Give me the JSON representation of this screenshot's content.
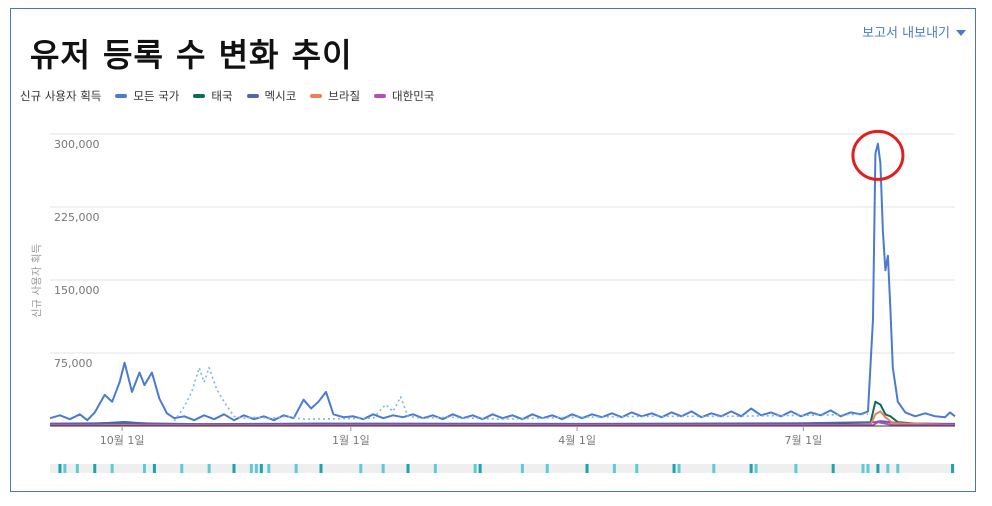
{
  "title": "유저 등록 수 변화 추이",
  "export_label": "보고서 내보내기",
  "legend": {
    "metric_label": "신규 사용자 획득",
    "items": [
      {
        "label": "모든 국가",
        "color": "#4a7bd0"
      },
      {
        "label": "태국",
        "color": "#0d6b55"
      },
      {
        "label": "멕시코",
        "color": "#5a62b0"
      },
      {
        "label": "브라질",
        "color": "#ef7d5a"
      },
      {
        "label": "대한민국",
        "color": "#b04fb7"
      }
    ]
  },
  "chart_data": {
    "type": "line",
    "ylabel": "신규 사용자 획득",
    "ylim": [
      0,
      300000
    ],
    "yticks": [
      {
        "value": 75000,
        "label": "75,000"
      },
      {
        "value": 150000,
        "label": "150,000"
      },
      {
        "value": 225000,
        "label": "225,000"
      },
      {
        "value": 300000,
        "label": "300,000"
      }
    ],
    "xlim": [
      "2023-09-02",
      "2024-08-31"
    ],
    "xticks": [
      {
        "date": "2023-10-01",
        "label": "10월 1일"
      },
      {
        "date": "2024-01-01",
        "label": "1월 1일"
      },
      {
        "date": "2024-04-01",
        "label": "4월 1일"
      },
      {
        "date": "2024-07-01",
        "label": "7월 1일"
      }
    ],
    "series": [
      {
        "name": "모든 국가",
        "color": "#4a7bd0",
        "points": [
          [
            "2023-09-02",
            8000
          ],
          [
            "2023-09-06",
            11000
          ],
          [
            "2023-09-10",
            7000
          ],
          [
            "2023-09-14",
            12000
          ],
          [
            "2023-09-17",
            6000
          ],
          [
            "2023-09-20",
            14000
          ],
          [
            "2023-09-24",
            32000
          ],
          [
            "2023-09-27",
            25000
          ],
          [
            "2023-09-30",
            45000
          ],
          [
            "2023-10-02",
            65000
          ],
          [
            "2023-10-05",
            35000
          ],
          [
            "2023-10-08",
            55000
          ],
          [
            "2023-10-10",
            42000
          ],
          [
            "2023-10-13",
            55000
          ],
          [
            "2023-10-16",
            28000
          ],
          [
            "2023-10-19",
            13000
          ],
          [
            "2023-10-22",
            8000
          ],
          [
            "2023-10-26",
            10000
          ],
          [
            "2023-10-30",
            6000
          ],
          [
            "2023-11-03",
            11000
          ],
          [
            "2023-11-07",
            7000
          ],
          [
            "2023-11-11",
            12000
          ],
          [
            "2023-11-15",
            6000
          ],
          [
            "2023-11-19",
            11000
          ],
          [
            "2023-11-23",
            7000
          ],
          [
            "2023-11-27",
            10000
          ],
          [
            "2023-12-01",
            6000
          ],
          [
            "2023-12-05",
            11000
          ],
          [
            "2023-12-09",
            8000
          ],
          [
            "2023-12-13",
            27000
          ],
          [
            "2023-12-16",
            18000
          ],
          [
            "2023-12-19",
            25000
          ],
          [
            "2023-12-22",
            35000
          ],
          [
            "2023-12-25",
            12000
          ],
          [
            "2023-12-29",
            9000
          ],
          [
            "2024-01-02",
            10000
          ],
          [
            "2024-01-06",
            7000
          ],
          [
            "2024-01-10",
            12000
          ],
          [
            "2024-01-14",
            8000
          ],
          [
            "2024-01-18",
            11000
          ],
          [
            "2024-01-22",
            9000
          ],
          [
            "2024-01-26",
            12000
          ],
          [
            "2024-01-30",
            8000
          ],
          [
            "2024-02-03",
            11000
          ],
          [
            "2024-02-07",
            7000
          ],
          [
            "2024-02-11",
            12000
          ],
          [
            "2024-02-15",
            8000
          ],
          [
            "2024-02-19",
            11000
          ],
          [
            "2024-02-23",
            7000
          ],
          [
            "2024-02-27",
            12000
          ],
          [
            "2024-03-02",
            8000
          ],
          [
            "2024-03-06",
            11000
          ],
          [
            "2024-03-10",
            7000
          ],
          [
            "2024-03-14",
            12000
          ],
          [
            "2024-03-18",
            8000
          ],
          [
            "2024-03-22",
            11000
          ],
          [
            "2024-03-26",
            7000
          ],
          [
            "2024-03-30",
            12000
          ],
          [
            "2024-04-03",
            8000
          ],
          [
            "2024-04-07",
            12000
          ],
          [
            "2024-04-11",
            9000
          ],
          [
            "2024-04-15",
            13000
          ],
          [
            "2024-04-19",
            9000
          ],
          [
            "2024-04-23",
            14000
          ],
          [
            "2024-04-27",
            10000
          ],
          [
            "2024-05-01",
            13000
          ],
          [
            "2024-05-05",
            9000
          ],
          [
            "2024-05-09",
            14000
          ],
          [
            "2024-05-13",
            10000
          ],
          [
            "2024-05-17",
            15000
          ],
          [
            "2024-05-21",
            9000
          ],
          [
            "2024-05-25",
            13000
          ],
          [
            "2024-05-29",
            10000
          ],
          [
            "2024-06-02",
            15000
          ],
          [
            "2024-06-06",
            10000
          ],
          [
            "2024-06-10",
            18000
          ],
          [
            "2024-06-14",
            11000
          ],
          [
            "2024-06-18",
            14000
          ],
          [
            "2024-06-22",
            10000
          ],
          [
            "2024-06-26",
            15000
          ],
          [
            "2024-06-30",
            10000
          ],
          [
            "2024-07-04",
            14000
          ],
          [
            "2024-07-08",
            11000
          ],
          [
            "2024-07-12",
            16000
          ],
          [
            "2024-07-16",
            10000
          ],
          [
            "2024-07-20",
            14000
          ],
          [
            "2024-07-24",
            12000
          ],
          [
            "2024-07-27",
            15000
          ],
          [
            "2024-07-29",
            110000
          ],
          [
            "2024-07-30",
            280000
          ],
          [
            "2024-07-31",
            290000
          ],
          [
            "2024-08-01",
            270000
          ],
          [
            "2024-08-02",
            200000
          ],
          [
            "2024-08-03",
            160000
          ],
          [
            "2024-08-04",
            175000
          ],
          [
            "2024-08-05",
            120000
          ],
          [
            "2024-08-06",
            60000
          ],
          [
            "2024-08-08",
            25000
          ],
          [
            "2024-08-11",
            14000
          ],
          [
            "2024-08-15",
            10000
          ],
          [
            "2024-08-19",
            13000
          ],
          [
            "2024-08-23",
            10000
          ],
          [
            "2024-08-27",
            9000
          ],
          [
            "2024-08-29",
            14000
          ],
          [
            "2024-08-31",
            10000
          ]
        ]
      },
      {
        "name": "모든 국가",
        "color": "#7fb5e0",
        "dashed": true,
        "points": [
          [
            "2023-10-22",
            5000
          ],
          [
            "2023-10-26",
            20000
          ],
          [
            "2023-10-29",
            35000
          ],
          [
            "2023-11-01",
            60000
          ],
          [
            "2023-11-03",
            45000
          ],
          [
            "2023-11-05",
            60000
          ],
          [
            "2023-11-08",
            38000
          ],
          [
            "2023-11-11",
            25000
          ],
          [
            "2023-11-15",
            10000
          ],
          [
            "2023-11-19",
            8000
          ],
          [
            "2023-11-24",
            9000
          ],
          [
            "2023-11-30",
            8000
          ],
          [
            "2023-12-06",
            10000
          ],
          [
            "2023-12-13",
            7000
          ],
          [
            "2024-01-10",
            8000
          ],
          [
            "2024-01-15",
            22000
          ],
          [
            "2024-01-18",
            15000
          ],
          [
            "2024-01-21",
            30000
          ],
          [
            "2024-01-24",
            10000
          ],
          [
            "2024-01-30",
            8000
          ],
          [
            "2024-02-10",
            9000
          ],
          [
            "2024-03-01",
            7000
          ],
          [
            "2024-04-01",
            9000
          ],
          [
            "2024-05-01",
            10000
          ],
          [
            "2024-06-01",
            10000
          ],
          [
            "2024-07-01",
            11000
          ],
          [
            "2024-07-27",
            12000
          ]
        ]
      },
      {
        "name": "태국",
        "color": "#0d6b55",
        "points": [
          [
            "2023-09-02",
            1500
          ],
          [
            "2023-09-20",
            2500
          ],
          [
            "2023-10-02",
            4000
          ],
          [
            "2023-10-08",
            3000
          ],
          [
            "2023-10-16",
            2000
          ],
          [
            "2023-11-15",
            1500
          ],
          [
            "2023-12-20",
            2500
          ],
          [
            "2024-01-20",
            1800
          ],
          [
            "2024-03-01",
            1500
          ],
          [
            "2024-05-01",
            2000
          ],
          [
            "2024-07-01",
            2500
          ],
          [
            "2024-07-28",
            3500
          ],
          [
            "2024-07-30",
            25000
          ],
          [
            "2024-08-01",
            22000
          ],
          [
            "2024-08-03",
            12000
          ],
          [
            "2024-08-05",
            10000
          ],
          [
            "2024-08-08",
            4000
          ],
          [
            "2024-08-15",
            2500
          ],
          [
            "2024-08-31",
            2000
          ]
        ]
      },
      {
        "name": "멕시코",
        "color": "#5a62b0",
        "points": [
          [
            "2023-09-02",
            2500
          ],
          [
            "2023-10-02",
            3000
          ],
          [
            "2023-11-01",
            2000
          ],
          [
            "2024-01-01",
            2500
          ],
          [
            "2024-04-01",
            2200
          ],
          [
            "2024-07-01",
            2800
          ],
          [
            "2024-07-30",
            4000
          ],
          [
            "2024-08-01",
            5000
          ],
          [
            "2024-08-10",
            2500
          ],
          [
            "2024-08-31",
            2200
          ]
        ]
      },
      {
        "name": "브라질",
        "color": "#ef7d5a",
        "points": [
          [
            "2023-09-02",
            800
          ],
          [
            "2024-07-28",
            1000
          ],
          [
            "2024-07-30",
            12000
          ],
          [
            "2024-08-01",
            15000
          ],
          [
            "2024-08-03",
            9000
          ],
          [
            "2024-08-06",
            3000
          ],
          [
            "2024-08-31",
            900
          ]
        ]
      },
      {
        "name": "대한민국",
        "color": "#b04fb7",
        "points": [
          [
            "2023-09-02",
            500
          ],
          [
            "2024-07-29",
            800
          ],
          [
            "2024-07-31",
            4000
          ],
          [
            "2024-08-02",
            3000
          ],
          [
            "2024-08-06",
            1000
          ],
          [
            "2024-08-31",
            600
          ]
        ]
      }
    ],
    "highlight_date": "2024-07-31",
    "annotation_color": "#e02020",
    "timeline_marks": [
      "2023-09-06",
      "2023-09-08",
      "2023-09-13",
      "2023-09-20",
      "2023-09-27",
      "2023-10-10",
      "2023-10-14",
      "2023-10-25",
      "2023-11-05",
      "2023-11-15",
      "2023-11-22",
      "2023-11-24",
      "2023-11-26",
      "2023-11-29",
      "2023-12-10",
      "2023-12-20",
      "2024-01-05",
      "2024-01-14",
      "2024-01-24",
      "2024-02-04",
      "2024-02-20",
      "2024-02-22",
      "2024-03-10",
      "2024-03-20",
      "2024-04-05",
      "2024-04-16",
      "2024-04-25",
      "2024-05-10",
      "2024-05-12",
      "2024-05-26",
      "2024-06-10",
      "2024-06-12",
      "2024-06-28",
      "2024-07-13",
      "2024-07-25",
      "2024-07-27",
      "2024-07-31",
      "2024-08-04",
      "2024-08-08",
      "2024-08-30"
    ]
  }
}
